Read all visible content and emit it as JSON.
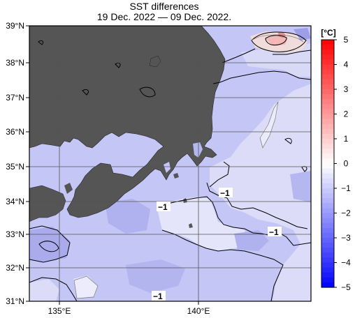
{
  "title": "SST differences",
  "subtitle": "19 Dec. 2022 — 09 Dec. 2022.",
  "lat_labels": [
    "39°N",
    "38°N",
    "37°N",
    "36°N",
    "35°N",
    "34°N",
    "33°N",
    "32°N",
    "31°N"
  ],
  "lon_labels": [
    "135°E",
    "140°E"
  ],
  "colorbar": {
    "unit": "[°C]",
    "tick_labels": [
      "5",
      "4",
      "3",
      "2",
      "1",
      "0",
      "−1",
      "−2",
      "−3",
      "−4",
      "−5"
    ],
    "colors": [
      "#ff0000",
      "#ff3333",
      "#ff6666",
      "#ff9999",
      "#ffcccc",
      "#f2f2ff",
      "#ccccff",
      "#9999ff",
      "#6666ff",
      "#3333ff",
      "#0000ff"
    ]
  },
  "contour_labels": [
    "−1",
    "−1",
    "−1",
    "−1"
  ],
  "colors": {
    "land": "#555555",
    "sea_main": "#c4c6f5",
    "sea_light": "#e6e6fa",
    "sea_dark": "#a3a6ea"
  }
}
